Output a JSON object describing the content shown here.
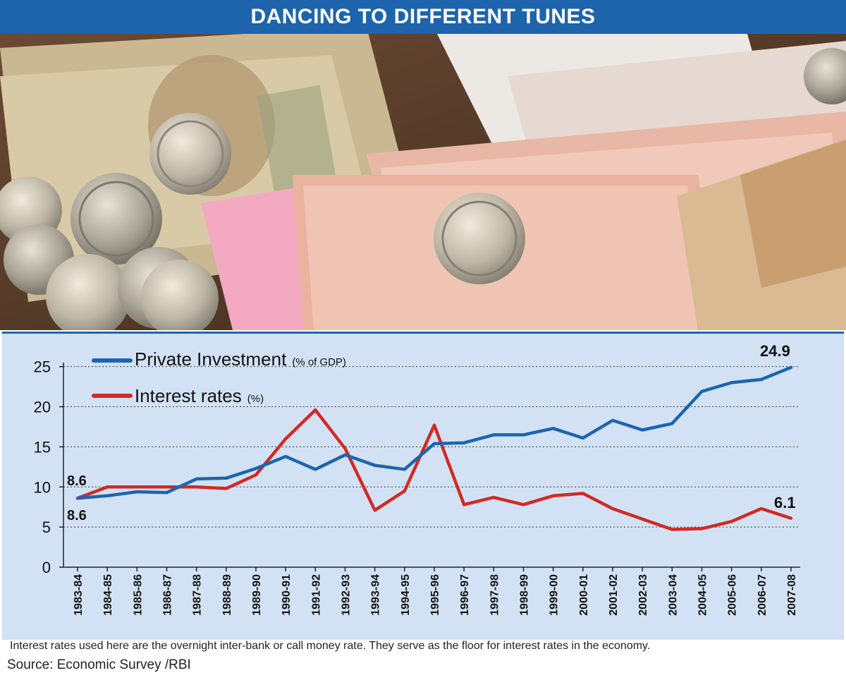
{
  "header": {
    "title": "DANCING TO DIFFERENT TUNES"
  },
  "photo": {
    "subject": "rupee-notes-and-coins-photo"
  },
  "chart_data": {
    "type": "line",
    "categories": [
      "1983-84",
      "1984-85",
      "1985-86",
      "1986-87",
      "1987-88",
      "1988-89",
      "1989-90",
      "1990-91",
      "1991-92",
      "1992-93",
      "1993-94",
      "1994-95",
      "1995-96",
      "1996-97",
      "1997-98",
      "1998-99",
      "1999-00",
      "2000-01",
      "2001-02",
      "2002-03",
      "2003-04",
      "2004-05",
      "2005-06",
      "2006-07",
      "2007-08"
    ],
    "series": [
      {
        "name": "Private Investment",
        "unit": "(% of GDP)",
        "color": "#1e64ad",
        "values": [
          8.6,
          8.9,
          9.4,
          9.3,
          11.0,
          11.1,
          12.3,
          13.8,
          12.2,
          14.0,
          12.7,
          12.2,
          15.4,
          15.5,
          16.5,
          16.5,
          17.3,
          16.1,
          18.3,
          17.1,
          17.9,
          21.9,
          23.0,
          23.4,
          24.9
        ]
      },
      {
        "name": "Interest rates",
        "unit": "(%)",
        "color": "#d12a25",
        "values": [
          8.6,
          10.0,
          10.0,
          10.0,
          10.0,
          9.8,
          11.5,
          16.0,
          19.6,
          14.8,
          7.1,
          9.5,
          17.7,
          7.8,
          8.7,
          7.8,
          8.9,
          9.2,
          7.3,
          6.0,
          4.7,
          4.8,
          5.7,
          7.3,
          6.1
        ]
      }
    ],
    "yticks": [
      0,
      5,
      10,
      15,
      20,
      25
    ],
    "ylim": [
      0,
      25.5
    ],
    "grid": "horizontal-dotted",
    "legend": "top-left",
    "annotations": {
      "start_investment": "8.6",
      "start_interest": "8.6",
      "end_investment": "24.9",
      "end_interest": "6.1"
    }
  },
  "footnote": "Interest rates used here are the overnight inter-bank or call money rate. They serve as the floor for interest rates in the economy.",
  "source": "Source: Economic Survey /RBI"
}
